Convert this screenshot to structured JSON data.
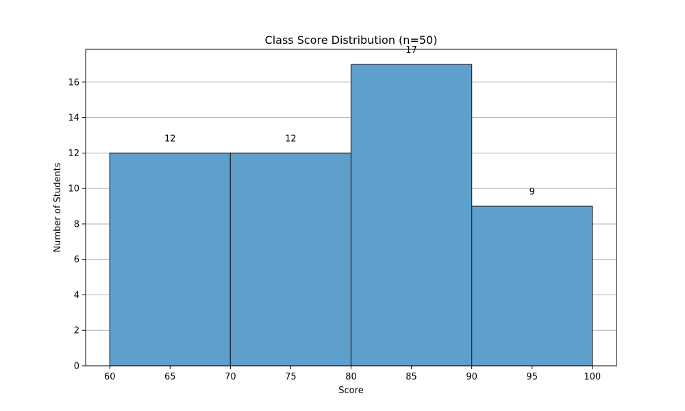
{
  "chart_data": {
    "type": "bar",
    "subtype": "histogram",
    "title": "Class Score Distribution (n=50)",
    "xlabel": "Score",
    "ylabel": "Number of Students",
    "bins": [
      {
        "start": 60,
        "end": 70,
        "count": 12
      },
      {
        "start": 70,
        "end": 80,
        "count": 12
      },
      {
        "start": 80,
        "end": 90,
        "count": 17
      },
      {
        "start": 90,
        "end": 100,
        "count": 9
      }
    ],
    "data_labels": [
      "12",
      "12",
      "17",
      "9"
    ],
    "xlim": [
      58,
      102
    ],
    "ylim": [
      0,
      17.85
    ],
    "xticks": [
      60,
      65,
      70,
      75,
      80,
      85,
      90,
      95,
      100
    ],
    "yticks": [
      0,
      2,
      4,
      6,
      8,
      10,
      12,
      14,
      16
    ],
    "grid": "y-axis",
    "colors": {
      "bar_fill": "#5f9fcc",
      "bar_edge": "#1f2a33",
      "grid": "#b0b0b0",
      "axis": "#000000"
    }
  }
}
